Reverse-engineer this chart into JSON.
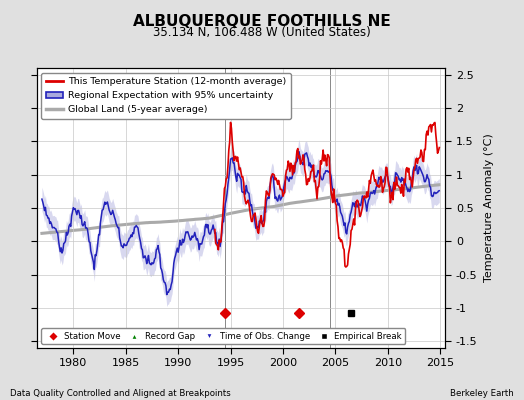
{
  "title": "ALBUQUERQUE FOOTHILLS NE",
  "subtitle": "35.134 N, 106.488 W (United States)",
  "ylabel": "Temperature Anomaly (°C)",
  "footer_left": "Data Quality Controlled and Aligned at Breakpoints",
  "footer_right": "Berkeley Earth",
  "xlim": [
    1976.5,
    2015.5
  ],
  "ylim": [
    -1.6,
    2.6
  ],
  "yticks": [
    -1.5,
    -1.0,
    -0.5,
    0.0,
    0.5,
    1.0,
    1.5,
    2.0,
    2.5
  ],
  "xticks": [
    1980,
    1985,
    1990,
    1995,
    2000,
    2005,
    2010,
    2015
  ],
  "station_moves": [
    1994.5,
    2001.5
  ],
  "empirical_breaks": [
    2006.5
  ],
  "vertical_lines": [
    1994.5,
    2004.5
  ],
  "bg_color": "#e0e0e0",
  "plot_bg_color": "#ffffff",
  "grid_color": "#c8c8c8",
  "red_color": "#dd0000",
  "blue_color": "#2222bb",
  "blue_fill_color": "#aaaadd",
  "gray_color": "#aaaaaa",
  "legend_entries": [
    "This Temperature Station (12-month average)",
    "Regional Expectation with 95% uncertainty",
    "Global Land (5-year average)"
  ]
}
